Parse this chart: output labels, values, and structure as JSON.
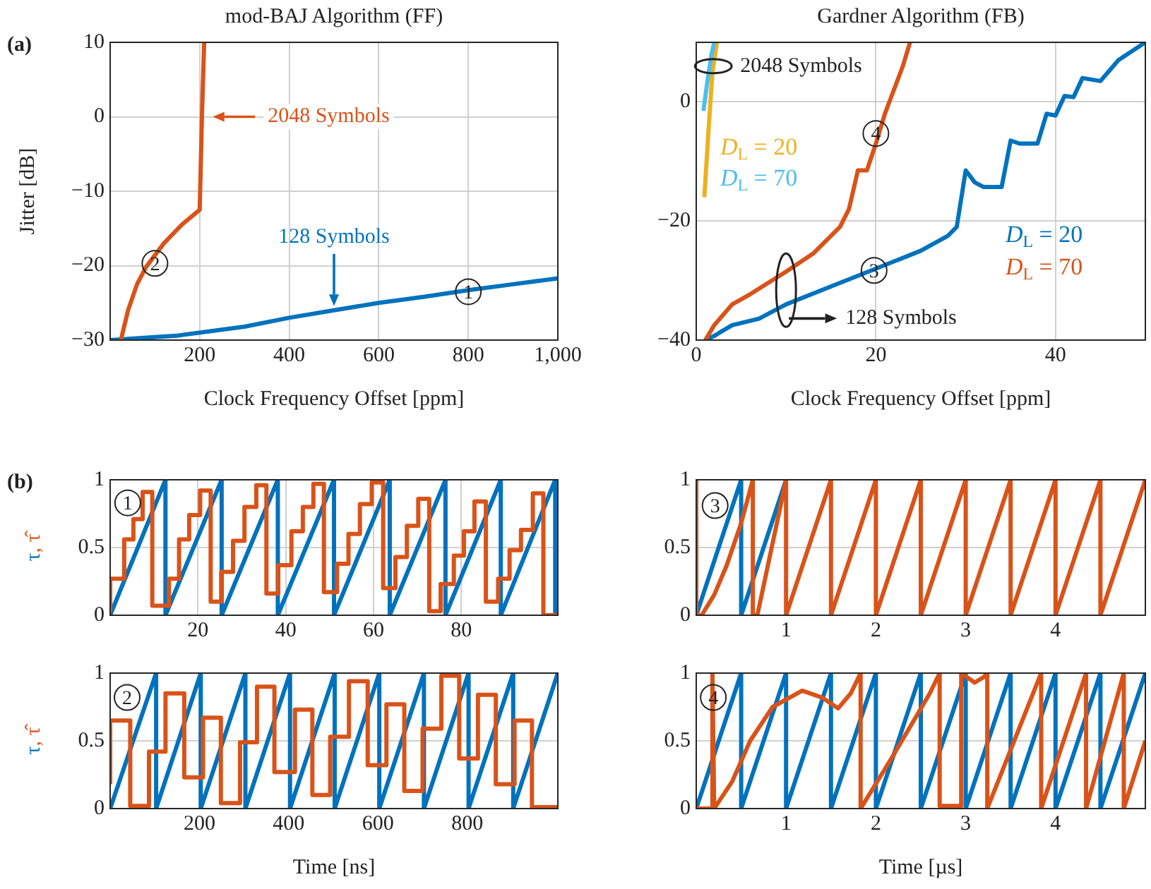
{
  "chart_data": [
    {
      "type": "line",
      "title": "mod-BAJ Algorithm (FF)",
      "xlabel": "Clock Frequency Offset [ppm]",
      "ylabel": "Jitter [dB]",
      "xlim": [
        0,
        1000
      ],
      "xticks": [
        200,
        400,
        600,
        800,
        {
          "value": 1000,
          "label": "1,000"
        }
      ],
      "ylim": [
        -30,
        10
      ],
      "yticks": [
        {
          "value": -30,
          "label": "−30"
        },
        {
          "value": -20,
          "label": "−20"
        },
        {
          "value": -10,
          "label": "−10"
        },
        0,
        10
      ],
      "grid": true,
      "marker": "none",
      "line_style": "solid",
      "annotations": [
        "(a)",
        {
          "text": "2048 Symbols",
          "x": 210,
          "y": 0
        },
        {
          "text": "128 Symbols",
          "x": 500,
          "y": -26
        },
        {
          "text": "2",
          "x": 100,
          "y": -19.7
        },
        {
          "text": "1",
          "x": 800,
          "y": -23.5
        }
      ],
      "series": [
        {
          "color": "#0072bd",
          "x": [
            0,
            100,
            150,
            300,
            400,
            500,
            600,
            700,
            800,
            900,
            1000
          ],
          "values": [
            -30,
            -29.6,
            -29.4,
            -28.2,
            -27,
            -26,
            -25,
            -24.2,
            -23.3,
            -22.5,
            -21.7
          ]
        },
        {
          "color": "#d95319",
          "x": [
            24,
            40,
            60,
            80,
            120,
            160,
            200,
            205,
            210
          ],
          "values": [
            -30,
            -26,
            -22.5,
            -20.2,
            -17,
            -14.5,
            -12.5,
            0,
            10
          ]
        }
      ]
    },
    {
      "type": "line",
      "title": "Gardner Algorithm (FB)",
      "xlabel": "Clock Frequency Offset [ppm]",
      "xlim": [
        0,
        50
      ],
      "xticks": [
        0,
        20,
        40
      ],
      "ylim": [
        -40,
        10
      ],
      "yticks": [
        {
          "value": -40,
          "label": "−40"
        },
        {
          "value": -20,
          "label": "−20"
        },
        0
      ],
      "grid": true,
      "marker": "none",
      "line_style": "solid",
      "annotations": [
        {
          "text": "2048 Symbols",
          "x": 1.9,
          "y": 6
        },
        {
          "text": "128 Symbols",
          "x": 10,
          "y": -34
        },
        {
          "text": "4",
          "x": 20,
          "y": -5.3
        },
        {
          "text": "3",
          "x": 19.8,
          "y": -28.3
        }
      ],
      "series": [
        {
          "name": "D$_{L}$ = 20",
          "color": "#0072bd",
          "x": [
            1,
            2,
            4,
            7,
            10,
            15,
            20,
            25,
            28,
            29,
            30,
            31,
            32,
            34,
            35,
            36,
            38,
            39,
            40,
            41,
            42,
            43,
            45,
            47,
            50
          ],
          "values": [
            -40,
            -39.3,
            -37.5,
            -36.4,
            -34,
            -31,
            -28,
            -25,
            -22.5,
            -21,
            -11.5,
            -13.5,
            -14.3,
            -14.3,
            -6.5,
            -7,
            -7,
            -2,
            -2.3,
            1,
            0.8,
            4,
            3.5,
            7,
            10
          ]
        },
        {
          "name": "D$_{L}$ = 70",
          "color": "#d95319",
          "x": [
            1,
            2,
            4,
            6,
            10,
            13,
            16,
            17,
            18,
            19,
            20,
            21,
            22,
            23,
            23.8
          ],
          "values": [
            -40,
            -37.5,
            -34,
            -32.3,
            -28.5,
            -25.5,
            -21,
            -18,
            -11.5,
            -11.5,
            -7,
            -2,
            2,
            6,
            10
          ]
        },
        {
          "name": "D$_{L}$ = 20",
          "color": "#edb120",
          "x": [
            0.9,
            1.4,
            1.8,
            2.3
          ],
          "values": [
            -16,
            -4,
            5,
            10
          ]
        },
        {
          "name": "D$_{L}$ = 70",
          "color": "#4dbeee",
          "x": [
            0.8,
            1.2,
            1.7,
            2.0
          ],
          "values": [
            -1.5,
            3,
            8,
            10
          ]
        }
      ]
    },
    {
      "type": "line",
      "ylabel": "τ, τ̂",
      "xlim": [
        0,
        102
      ],
      "xticks": [
        20,
        40,
        60,
        80
      ],
      "ylim": [
        0,
        1
      ],
      "yticks": [
        0,
        0.5,
        1
      ],
      "grid": true,
      "marker": "none",
      "line_style": "solid",
      "annotations": [
        "(b)",
        {
          "text": "1",
          "x": 4,
          "y": 0.83
        }
      ],
      "series": [
        {
          "color": "#0072bd",
          "x": [
            0,
            12.6,
            12.6,
            25.4,
            25.4,
            38.2,
            38.2,
            51,
            51,
            63.7,
            63.7,
            76.4,
            76.4,
            89,
            89,
            101.4,
            101.4,
            102
          ],
          "values": [
            0,
            1,
            0,
            1,
            0,
            1,
            0,
            1,
            0,
            1,
            0,
            1,
            0,
            1,
            0,
            1,
            0,
            0.05
          ]
        },
        {
          "type": "step",
          "color": "#d95319",
          "x": [
            0,
            3.2,
            5.3,
            7.4,
            9.6,
            13.4,
            15.7,
            18,
            20.5,
            22.9,
            25.3,
            28,
            30.6,
            33.3,
            35.6,
            38.3,
            41.3,
            43.9,
            46.3,
            48.7,
            51.7,
            54.3,
            56.9,
            59.6,
            62.2,
            65,
            67.6,
            70.2,
            72.7,
            75.3,
            78.3,
            80.6,
            83,
            85.6,
            88.4,
            91,
            93.6,
            96.3,
            98.7,
            101.4,
            102
          ],
          "values": [
            0.02,
            0.27,
            0.56,
            0.71,
            0.91,
            0.07,
            0.27,
            0.56,
            0.74,
            0.92,
            0.1,
            0.32,
            0.55,
            0.8,
            0.96,
            0.16,
            0.37,
            0.62,
            0.8,
            0.97,
            0.17,
            0.38,
            0.6,
            0.82,
            0.98,
            0.2,
            0.43,
            0.66,
            0.86,
            0.03,
            0.23,
            0.44,
            0.62,
            0.84,
            0.1,
            0.27,
            0.48,
            0.63,
            0.9,
            0,
            0
          ]
        }
      ]
    },
    {
      "type": "line",
      "xlim": [
        0,
        5
      ],
      "xticks": [
        1,
        2,
        3,
        4
      ],
      "ylim": [
        0,
        1
      ],
      "yticks": [
        0,
        0.5,
        1
      ],
      "grid": true,
      "marker": "none",
      "line_style": "solid",
      "annotations": [
        {
          "text": "3",
          "x": 0.21,
          "y": 0.81
        }
      ],
      "series": [
        {
          "color": "#0072bd",
          "x": [
            0,
            0.5,
            0.5,
            1
          ],
          "values": [
            0,
            1,
            0,
            1
          ]
        },
        {
          "color": "#d95319",
          "x": [
            0,
            0,
            0.06,
            0.2,
            0.34,
            0.5,
            0.63,
            0.63,
            0.68,
            1,
            1,
            1.5,
            1.5,
            2,
            2,
            2.5,
            2.5,
            3,
            3,
            3.5,
            3.5,
            4,
            4,
            4.5,
            4.5,
            5
          ],
          "values": [
            1,
            0,
            0,
            0.15,
            0.37,
            0.68,
            1,
            0,
            0,
            1,
            0,
            1,
            0,
            1,
            0,
            1,
            0,
            1,
            0,
            1,
            0,
            1,
            0,
            1,
            0,
            1
          ]
        }
      ]
    },
    {
      "type": "line",
      "ylabel": "τ, τ̂",
      "xlabel": "Time [ns]",
      "xlim": [
        0,
        1003
      ],
      "xticks": [
        200,
        400,
        600,
        800
      ],
      "ylim": [
        0,
        1
      ],
      "yticks": [
        0,
        0.5,
        1
      ],
      "grid": true,
      "marker": "none",
      "line_style": "solid",
      "annotations": [
        {
          "text": "2",
          "x": 38,
          "y": 0.82
        }
      ],
      "series": [
        {
          "color": "#0072bd",
          "x": [
            0,
            103,
            103,
            203,
            203,
            303,
            303,
            403,
            403,
            503,
            503,
            603,
            603,
            703,
            703,
            803,
            803,
            903,
            903,
            1003
          ],
          "values": [
            0,
            1,
            0,
            1,
            0,
            1,
            0,
            1,
            0,
            1,
            0,
            1,
            0,
            1,
            0,
            1,
            0,
            1,
            0,
            1
          ]
        },
        {
          "type": "step",
          "color": "#d95319",
          "x": [
            0,
            45,
            87,
            124,
            166,
            208,
            248,
            291,
            329,
            368,
            414,
            453,
            493,
            535,
            577,
            619,
            659,
            700,
            742,
            782,
            824,
            864,
            906,
            945,
            989,
            1003
          ],
          "values": [
            0.18,
            0.65,
            0.02,
            0.42,
            0.85,
            0.23,
            0.67,
            0.04,
            0.49,
            0.9,
            0.27,
            0.73,
            0.1,
            0.53,
            0.94,
            0.32,
            0.77,
            0.13,
            0.59,
            0.98,
            0.37,
            0.84,
            0.18,
            0.65,
            0.01,
            0.01
          ]
        }
      ]
    },
    {
      "type": "line",
      "xlabel": "Time [µs]",
      "xlim": [
        0,
        5
      ],
      "xticks": [
        1,
        2,
        3,
        4
      ],
      "ylim": [
        0,
        1
      ],
      "yticks": [
        0,
        0.5,
        1
      ],
      "grid": true,
      "marker": "none",
      "line_style": "solid",
      "annotations": [
        {
          "text": "4",
          "x": 0.19,
          "y": 0.82
        }
      ],
      "series": [
        {
          "color": "#0072bd",
          "x": [
            0,
            0.5,
            0.5,
            1,
            1,
            1.5,
            1.5,
            2,
            2,
            2.5,
            2.5,
            3,
            3,
            3.5,
            3.5,
            4,
            4,
            4.5,
            4.5,
            5
          ],
          "values": [
            0,
            1,
            0,
            1,
            0,
            1,
            0,
            1,
            0,
            1,
            0,
            1,
            0,
            1,
            0,
            1,
            0,
            1,
            0,
            1
          ]
        },
        {
          "color": "#d95319",
          "x": [
            0,
            0.18,
            0.18,
            0.2,
            0.4,
            0.6,
            0.85,
            1.18,
            1.4,
            1.58,
            1.72,
            1.83,
            1.83,
            2.2,
            2.6,
            2.71,
            2.71,
            2.95,
            2.95,
            3.1,
            3.2,
            3.24,
            3.24,
            3.84,
            3.84,
            4.34,
            4.34,
            4.76,
            4.76,
            5
          ],
          "values": [
            0,
            0,
            1,
            0,
            0.2,
            0.5,
            0.75,
            0.87,
            0.82,
            0.74,
            0.85,
            1,
            0,
            0.4,
            0.85,
            1,
            0.02,
            0.02,
            1,
            0.93,
            0.97,
            1,
            0,
            1,
            0,
            1,
            0,
            1,
            0,
            0.5
          ]
        }
      ]
    }
  ]
}
